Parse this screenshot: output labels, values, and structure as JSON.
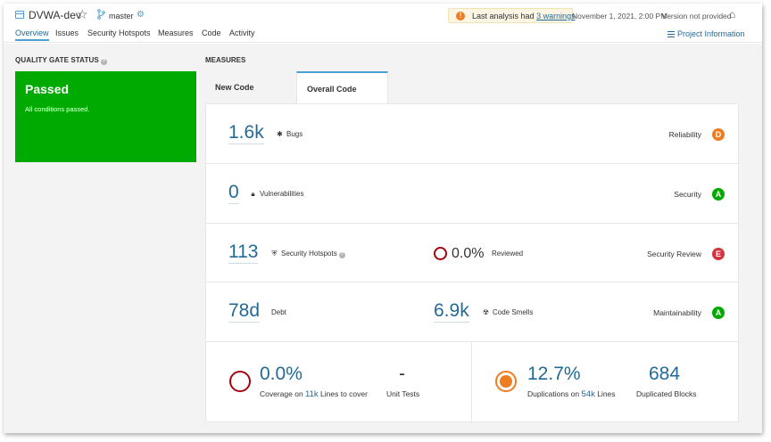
{
  "header": {
    "project_name": "DVWA-dev",
    "star_icon": "☆",
    "branch": "master",
    "warning": {
      "prefix": "Last analysis had",
      "link": "3 warnings"
    },
    "analysis_date": "November 1, 2021, 2:00 PM",
    "version": "Version not provided",
    "tabs": [
      {
        "label": "Overview",
        "active": true
      },
      {
        "label": "Issues"
      },
      {
        "label": "Security Hotspots"
      },
      {
        "label": "Measures"
      },
      {
        "label": "Code"
      },
      {
        "label": "Activity"
      }
    ],
    "project_info": "Project Information"
  },
  "quality_gate": {
    "title": "QUALITY GATE STATUS",
    "status": "Passed",
    "description": "All conditions passed.",
    "color": "#00aa00"
  },
  "measures": {
    "title": "MEASURES",
    "tabs": [
      {
        "label": "New Code"
      },
      {
        "label": "Overall Code",
        "active": true
      }
    ],
    "bugs": {
      "value": "1.6k",
      "label": "Bugs",
      "rating_label": "Reliability",
      "rating": "D",
      "rating_color": "#ed7d20"
    },
    "vulnerabilities": {
      "value": "0",
      "label": "Vulnerabilities",
      "rating_label": "Security",
      "rating": "A",
      "rating_color": "#00aa00"
    },
    "hotspots": {
      "value": "113",
      "label": "Security Hotspots",
      "reviewed_value": "0.0%",
      "reviewed_label": "Reviewed",
      "rating_label": "Security Review",
      "rating": "E",
      "rating_color": "#d4333f"
    },
    "maintainability": {
      "debt_value": "78d",
      "debt_label": "Debt",
      "smells_value": "6.9k",
      "smells_label": "Code Smells",
      "rating_label": "Maintainability",
      "rating": "A",
      "rating_color": "#00aa00"
    },
    "coverage": {
      "value": "0.0%",
      "sub_prefix": "Coverage on",
      "lines": "11k",
      "sub_suffix": "Lines to cover",
      "unit_tests_value": "-",
      "unit_tests_label": "Unit Tests"
    },
    "duplications": {
      "value": "12.7%",
      "sub_prefix": "Duplications on",
      "lines": "54k",
      "sub_suffix": "Lines",
      "blocks_value": "684",
      "blocks_label": "Duplicated Blocks"
    }
  }
}
